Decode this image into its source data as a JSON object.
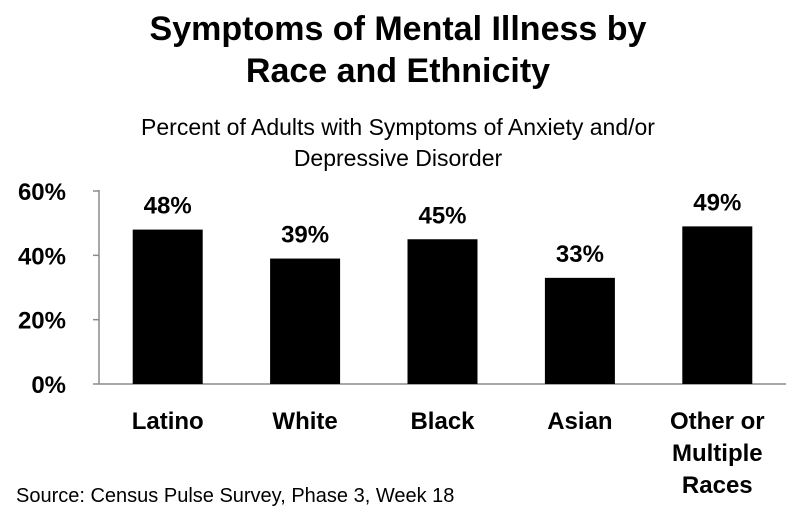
{
  "chart_data": {
    "type": "bar",
    "title": [
      "Symptoms of Mental Illness by",
      "Race and Ethnicity"
    ],
    "subtitle": [
      "Percent of Adults with Symptoms of Anxiety and/or",
      "Depressive Disorder"
    ],
    "categories": [
      [
        "Latino"
      ],
      [
        "White"
      ],
      [
        "Black"
      ],
      [
        "Asian"
      ],
      [
        "Other or",
        "Multiple",
        "Races"
      ]
    ],
    "values": [
      48,
      39,
      45,
      33,
      49
    ],
    "value_labels": [
      "48%",
      "39%",
      "45%",
      "33%",
      "49%"
    ],
    "ylim": [
      0,
      60
    ],
    "yticks": [
      0,
      20,
      40,
      60
    ],
    "ytick_labels": [
      "0%",
      "20%",
      "40%",
      "60%"
    ],
    "bar_color": "#000000",
    "grid": false,
    "legend": "none"
  },
  "source": "Source: Census Pulse Survey, Phase 3, Week 18"
}
